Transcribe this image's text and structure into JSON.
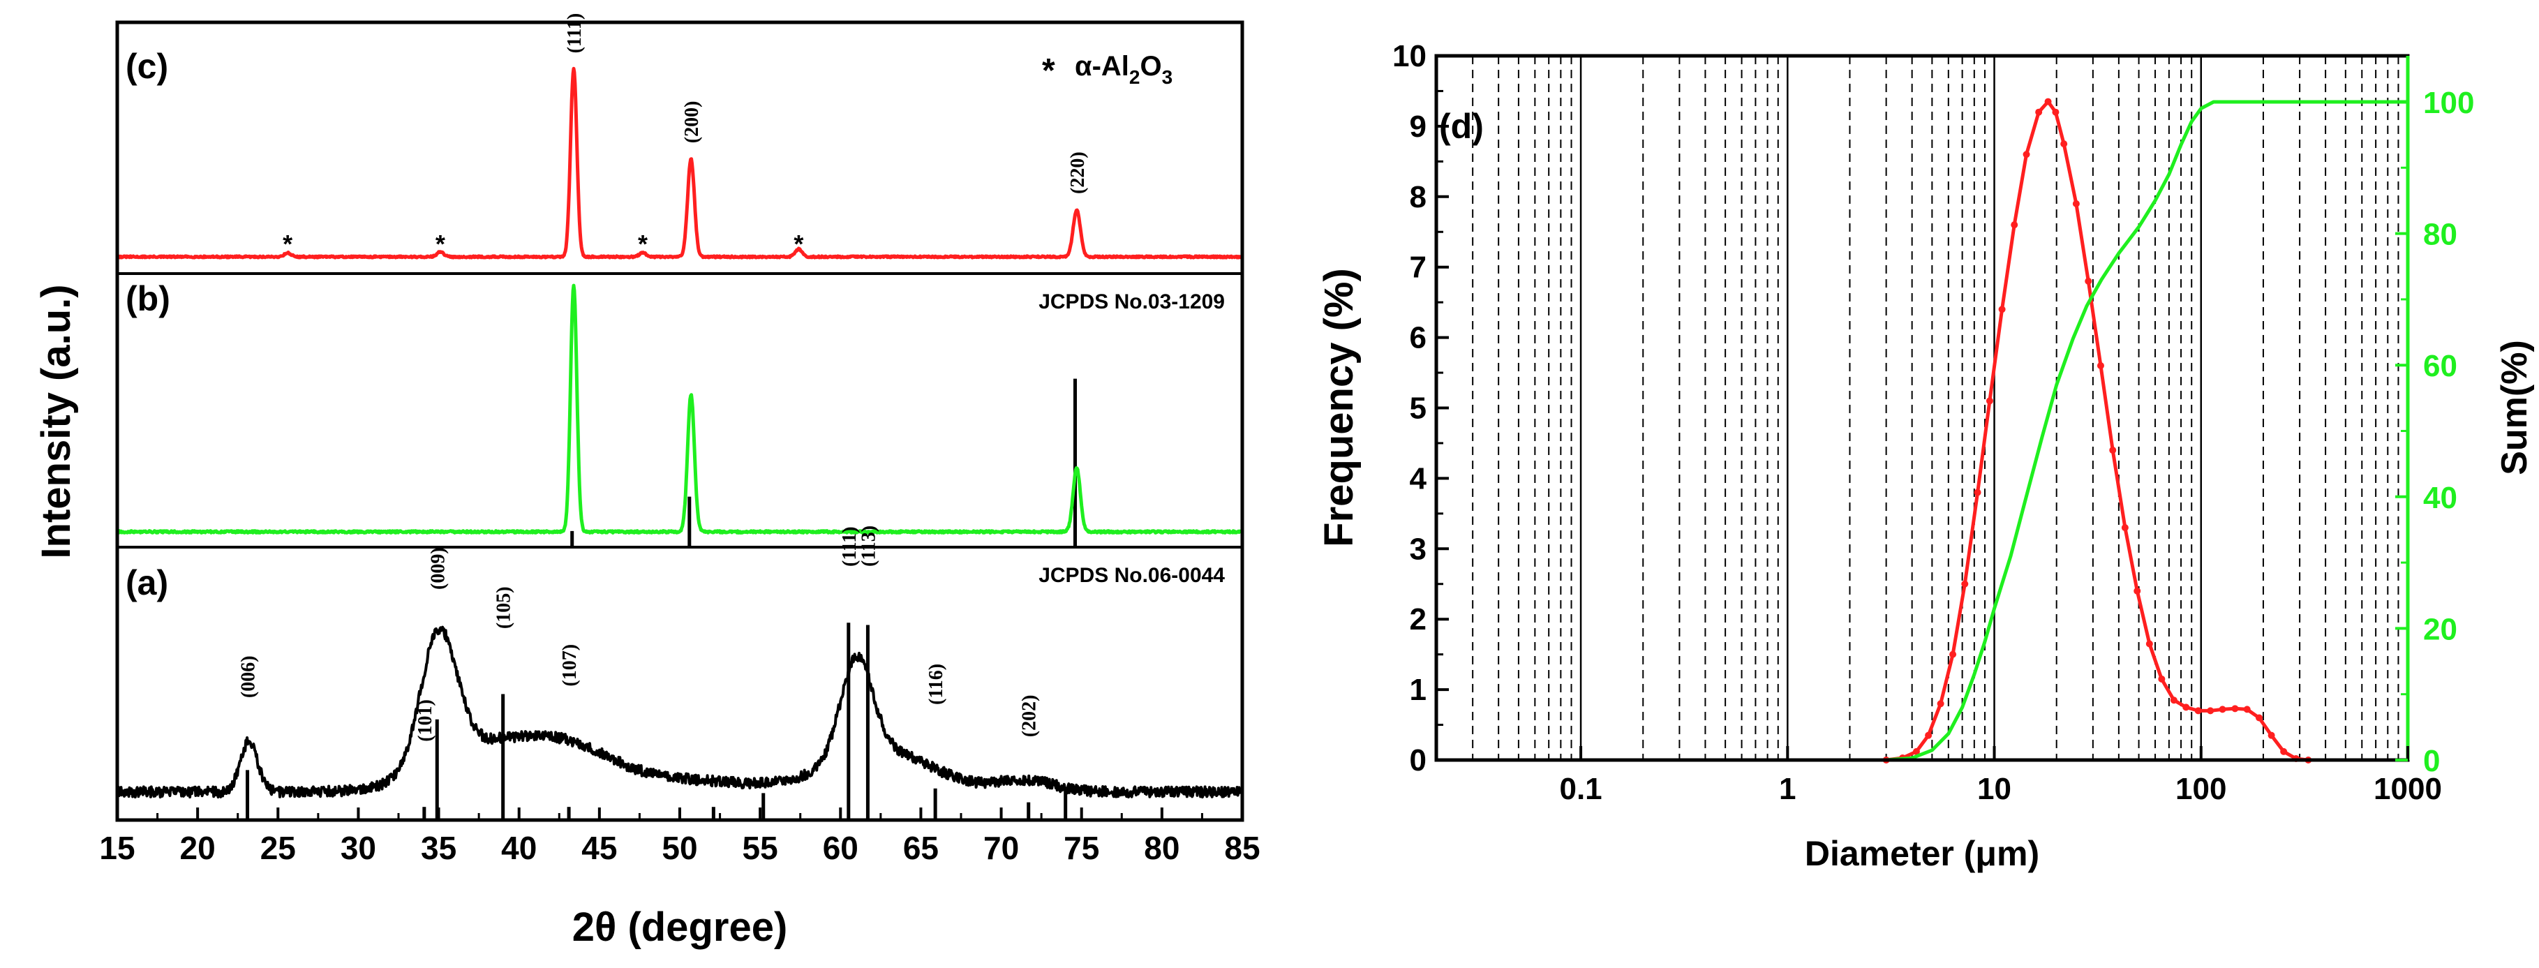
{
  "figure": {
    "colors": {
      "red": "#ff1f1f",
      "green": "#1fef1f",
      "black": "#000000"
    }
  },
  "chart_data": [
    {
      "type": "line",
      "id": "xrd",
      "xlabel": "2θ (degree)",
      "ylabel": "Intensity (a.u.)",
      "xlim": [
        15,
        85
      ],
      "xticks": [
        15,
        20,
        25,
        30,
        35,
        40,
        45,
        50,
        55,
        60,
        65,
        70,
        75,
        80,
        85
      ],
      "panels": [
        {
          "label": "(c)",
          "color": "#ff1f1f",
          "legend_symbol": "*",
          "legend_text": "α-Al",
          "legend_sub": "2",
          "legend_text2": "O",
          "legend_sub2": "3",
          "peaks": [
            {
              "x": 43.4,
              "h": 0.96,
              "w": 0.28
            },
            {
              "x": 50.7,
              "h": 0.5,
              "w": 0.3
            },
            {
              "x": 74.7,
              "h": 0.24,
              "w": 0.32
            },
            {
              "x": 25.6,
              "h": 0.02,
              "w": 0.3
            },
            {
              "x": 35.1,
              "h": 0.025,
              "w": 0.3
            },
            {
              "x": 47.7,
              "h": 0.02,
              "w": 0.3
            },
            {
              "x": 57.4,
              "h": 0.04,
              "w": 0.3
            }
          ],
          "annotations": [
            {
              "x": 43.4,
              "text": "(111)",
              "h": 1.02
            },
            {
              "x": 50.7,
              "text": "(200)",
              "h": 0.56
            },
            {
              "x": 74.7,
              "text": "(220)",
              "h": 0.3
            }
          ],
          "stars": [
            25.6,
            35.1,
            47.7,
            57.4
          ]
        },
        {
          "label": "(b)",
          "color": "#1fef1f",
          "reference": "JCPDS No.03-1209",
          "peaks": [
            {
              "x": 43.4,
              "h": 1.0,
              "w": 0.28
            },
            {
              "x": 50.7,
              "h": 0.56,
              "w": 0.3
            },
            {
              "x": 74.7,
              "h": 0.26,
              "w": 0.32
            }
          ],
          "ref_lines": [
            {
              "x": 43.3,
              "h": 0.06
            },
            {
              "x": 50.6,
              "h": 0.2
            },
            {
              "x": 74.6,
              "h": 0.68
            }
          ]
        },
        {
          "label": "(a)",
          "color": "#000000",
          "reference": "JCPDS No.06-0044",
          "annotations": [
            {
              "x": 23.1,
              "text": "(006)",
              "h": 0.43
            },
            {
              "x": 34.9,
              "text": "(009)",
              "h": 0.9
            },
            {
              "x": 39.0,
              "text": "(105)",
              "h": 0.73
            },
            {
              "x": 43.1,
              "text": "(107)",
              "h": 0.48
            },
            {
              "x": 34.1,
              "text": "(101)",
              "h": 0.24
            },
            {
              "x": 60.5,
              "text": "(111)",
              "h": 1.0
            },
            {
              "x": 61.7,
              "text": "(113)",
              "h": 1.0
            },
            {
              "x": 65.9,
              "text": "(116)",
              "h": 0.4
            },
            {
              "x": 71.7,
              "text": "(202)",
              "h": 0.26
            }
          ],
          "ref_lines": [
            {
              "x": 23.1,
              "h": 0.22
            },
            {
              "x": 34.1,
              "h": 0.06
            },
            {
              "x": 34.9,
              "h": 0.44
            },
            {
              "x": 39.0,
              "h": 0.55
            },
            {
              "x": 43.1,
              "h": 0.06
            },
            {
              "x": 52.1,
              "h": 0.06
            },
            {
              "x": 55.2,
              "h": 0.12
            },
            {
              "x": 60.5,
              "h": 0.86
            },
            {
              "x": 61.7,
              "h": 0.85
            },
            {
              "x": 65.9,
              "h": 0.14
            },
            {
              "x": 71.7,
              "h": 0.08
            },
            {
              "x": 74.0,
              "h": 0.14
            }
          ]
        }
      ]
    },
    {
      "type": "line",
      "id": "psd",
      "label": "(d)",
      "xlabel": "Diameter (μm)",
      "ylabel": "Frequency (%)",
      "y2label": "Sum(%)",
      "xscale": "log",
      "xlim": [
        0.02,
        1000
      ],
      "xticks": [
        "0.1",
        "1",
        "10",
        "100",
        "1000"
      ],
      "ylim": [
        0,
        10
      ],
      "yticks": [
        0,
        1,
        2,
        3,
        4,
        5,
        6,
        7,
        8,
        9,
        10
      ],
      "y2lim": [
        0,
        107
      ],
      "y2ticks": [
        0,
        20,
        40,
        60,
        80,
        100
      ],
      "series": [
        {
          "name": "Frequency",
          "axis": "left",
          "color": "#ff1f1f",
          "x": [
            0.02,
            3.0,
            3.6,
            4.2,
            4.8,
            5.5,
            6.3,
            7.2,
            8.3,
            9.5,
            10.9,
            12.5,
            14.3,
            16.4,
            18.2,
            19.8,
            21.7,
            24.9,
            28.5,
            32.7,
            37.4,
            42.9,
            49.1,
            56.3,
            64.5,
            73.9,
            84.6,
            96.9,
            111,
            127,
            146,
            167,
            191,
            219,
            251,
            288,
            330,
            1000
          ],
          "y": [
            0,
            0,
            0.03,
            0.12,
            0.35,
            0.8,
            1.5,
            2.5,
            3.8,
            5.1,
            6.4,
            7.6,
            8.6,
            9.2,
            9.35,
            9.2,
            8.75,
            7.9,
            6.8,
            5.6,
            4.4,
            3.3,
            2.4,
            1.65,
            1.15,
            0.85,
            0.75,
            0.7,
            0.7,
            0.72,
            0.73,
            0.72,
            0.6,
            0.35,
            0.12,
            0.02,
            0,
            0
          ]
        },
        {
          "name": "Sum",
          "axis": "right",
          "color": "#1fef1f",
          "x": [
            0.02,
            3.0,
            4.0,
            5.0,
            6.0,
            7.0,
            8.0,
            9.0,
            10,
            12,
            14,
            17,
            20,
            24,
            28,
            33,
            40,
            50,
            60,
            70,
            80,
            90,
            100,
            115,
            130,
            1000
          ],
          "y": [
            0,
            0,
            0.3,
            1.5,
            4.0,
            8.0,
            13.0,
            18.0,
            23.0,
            31.0,
            39.0,
            49.0,
            57.0,
            64.0,
            69.0,
            73.0,
            77.0,
            81.0,
            85.0,
            89.0,
            93.5,
            97.0,
            99.0,
            100.0,
            100.0,
            100.0
          ]
        }
      ]
    }
  ]
}
